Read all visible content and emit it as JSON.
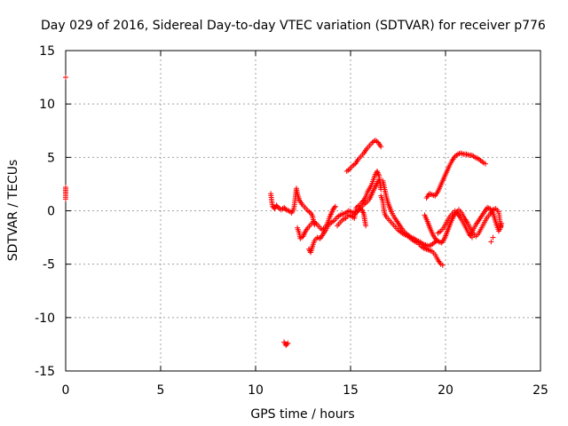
{
  "chart_data": {
    "type": "scatter",
    "title": "Day 029 of 2016, Sidereal Day-to-day VTEC variation (SDTVAR) for receiver p776",
    "xlabel": "GPS time / hours",
    "ylabel": "SDTVAR / TECUs",
    "xlim": [
      0,
      25
    ],
    "ylim": [
      -15,
      15
    ],
    "x_ticks": [
      "0",
      "5",
      "10",
      "15",
      "20",
      "25"
    ],
    "y_ticks": [
      "15",
      "10",
      "5",
      "0",
      "-5",
      "-10",
      "-15"
    ],
    "grid": true,
    "marker": "+",
    "series_color": "#ff0000",
    "series": [
      {
        "points": [
          [
            0.0,
            12.5
          ],
          [
            0.0,
            2.2
          ],
          [
            0.0,
            1.6
          ],
          [
            0.0,
            1.1
          ],
          [
            10.8,
            1.6
          ],
          [
            10.85,
            0.9
          ],
          [
            10.9,
            0.4
          ],
          [
            11.0,
            0.2
          ],
          [
            11.1,
            0.5
          ],
          [
            11.2,
            0.3
          ],
          [
            11.35,
            0.1
          ],
          [
            11.5,
            0.3
          ],
          [
            11.6,
            0.1
          ],
          [
            11.75,
            0.0
          ],
          [
            11.9,
            -0.2
          ],
          [
            12.0,
            0.1
          ],
          [
            12.05,
            0.6
          ],
          [
            12.1,
            1.3
          ],
          [
            12.15,
            2.1
          ],
          [
            12.2,
            1.6
          ],
          [
            12.3,
            1.0
          ],
          [
            12.45,
            0.6
          ],
          [
            12.6,
            0.3
          ],
          [
            12.75,
            0.0
          ],
          [
            12.9,
            -0.2
          ],
          [
            13.0,
            -0.5
          ],
          [
            13.05,
            -1.0
          ],
          [
            13.1,
            -1.3
          ],
          [
            12.2,
            -1.6
          ],
          [
            12.3,
            -2.1
          ],
          [
            12.35,
            -2.6
          ],
          [
            12.5,
            -2.4
          ],
          [
            12.6,
            -2.0
          ],
          [
            12.75,
            -1.6
          ],
          [
            12.9,
            -1.3
          ],
          [
            13.05,
            -1.0
          ],
          [
            13.2,
            -1.2
          ],
          [
            13.35,
            -1.5
          ],
          [
            13.5,
            -1.8
          ],
          [
            13.65,
            -1.6
          ],
          [
            13.8,
            -1.1
          ],
          [
            13.9,
            -0.6
          ],
          [
            14.0,
            -0.2
          ],
          [
            14.1,
            0.2
          ],
          [
            14.2,
            0.4
          ],
          [
            12.8,
            -3.6
          ],
          [
            12.9,
            -3.9
          ],
          [
            13.0,
            -3.3
          ],
          [
            13.1,
            -2.8
          ],
          [
            13.25,
            -2.5
          ],
          [
            13.4,
            -2.6
          ],
          [
            13.55,
            -2.2
          ],
          [
            13.7,
            -1.8
          ],
          [
            13.85,
            -1.3
          ],
          [
            14.0,
            -1.1
          ],
          [
            14.15,
            -0.9
          ],
          [
            14.3,
            -0.6
          ],
          [
            14.45,
            -0.4
          ],
          [
            14.6,
            -0.3
          ],
          [
            14.75,
            -0.2
          ],
          [
            14.9,
            0.0
          ],
          [
            15.05,
            -0.1
          ],
          [
            15.2,
            -0.3
          ],
          [
            15.35,
            -0.1
          ],
          [
            15.5,
            0.2
          ],
          [
            15.6,
            0.1
          ],
          [
            15.7,
            -0.3
          ],
          [
            15.75,
            -0.9
          ],
          [
            15.8,
            -1.4
          ],
          [
            14.3,
            -1.4
          ],
          [
            14.45,
            -1.1
          ],
          [
            14.6,
            -0.8
          ],
          [
            14.75,
            -0.7
          ],
          [
            14.9,
            -0.4
          ],
          [
            15.05,
            -0.5
          ],
          [
            15.2,
            -0.7
          ],
          [
            15.3,
            0.3
          ],
          [
            15.45,
            0.5
          ],
          [
            15.6,
            0.8
          ],
          [
            15.7,
            1.0
          ],
          [
            15.8,
            1.3
          ],
          [
            15.9,
            1.8
          ],
          [
            16.0,
            2.1
          ],
          [
            16.1,
            2.4
          ],
          [
            16.2,
            2.9
          ],
          [
            16.3,
            3.4
          ],
          [
            16.4,
            3.7
          ],
          [
            16.5,
            3.3
          ],
          [
            16.55,
            2.6
          ],
          [
            16.6,
            2.0
          ],
          [
            15.4,
            0.0
          ],
          [
            15.55,
            0.3
          ],
          [
            15.7,
            0.6
          ],
          [
            15.85,
            0.8
          ],
          [
            16.0,
            1.1
          ],
          [
            16.1,
            1.5
          ],
          [
            16.2,
            1.9
          ],
          [
            16.3,
            2.2
          ],
          [
            16.4,
            2.6
          ],
          [
            16.5,
            2.9
          ],
          [
            14.8,
            3.7
          ],
          [
            14.95,
            3.9
          ],
          [
            15.1,
            4.2
          ],
          [
            15.25,
            4.4
          ],
          [
            15.4,
            4.8
          ],
          [
            15.55,
            5.1
          ],
          [
            15.7,
            5.4
          ],
          [
            15.85,
            5.8
          ],
          [
            16.0,
            6.1
          ],
          [
            16.15,
            6.4
          ],
          [
            16.3,
            6.6
          ],
          [
            16.45,
            6.4
          ],
          [
            16.6,
            6.0
          ],
          [
            16.6,
            1.4
          ],
          [
            16.7,
            0.9
          ],
          [
            16.75,
            0.2
          ],
          [
            16.8,
            -0.3
          ],
          [
            16.9,
            -0.6
          ],
          [
            17.05,
            -0.9
          ],
          [
            17.2,
            -1.2
          ],
          [
            17.35,
            -1.5
          ],
          [
            17.5,
            -1.8
          ],
          [
            17.65,
            -2.0
          ],
          [
            17.8,
            -2.2
          ],
          [
            17.95,
            -2.3
          ],
          [
            18.1,
            -2.5
          ],
          [
            18.25,
            -2.7
          ],
          [
            18.4,
            -2.9
          ],
          [
            18.55,
            -3.0
          ],
          [
            18.7,
            -3.3
          ],
          [
            18.85,
            -3.5
          ],
          [
            19.0,
            -3.6
          ],
          [
            19.15,
            -3.7
          ],
          [
            19.3,
            -3.8
          ],
          [
            19.45,
            -4.1
          ],
          [
            19.6,
            -4.6
          ],
          [
            19.75,
            -5.0
          ],
          [
            19.85,
            -5.1
          ],
          [
            16.7,
            2.8
          ],
          [
            16.8,
            2.0
          ],
          [
            16.9,
            1.2
          ],
          [
            17.0,
            0.6
          ],
          [
            17.15,
            -0.1
          ],
          [
            17.3,
            -0.6
          ],
          [
            17.45,
            -1.0
          ],
          [
            17.6,
            -1.4
          ],
          [
            17.75,
            -1.8
          ],
          [
            17.9,
            -2.1
          ],
          [
            18.05,
            -2.3
          ],
          [
            18.2,
            -2.5
          ],
          [
            18.35,
            -2.6
          ],
          [
            18.5,
            -2.8
          ],
          [
            18.65,
            -2.9
          ],
          [
            18.8,
            -3.1
          ],
          [
            18.95,
            -3.2
          ],
          [
            19.1,
            -3.3
          ],
          [
            19.25,
            -3.2
          ],
          [
            19.4,
            -3.0
          ],
          [
            19.55,
            -2.8
          ],
          [
            19.0,
            1.2
          ],
          [
            19.15,
            1.6
          ],
          [
            19.3,
            1.5
          ],
          [
            19.45,
            1.4
          ],
          [
            19.6,
            1.8
          ],
          [
            19.75,
            2.4
          ],
          [
            19.9,
            3.0
          ],
          [
            20.05,
            3.6
          ],
          [
            20.2,
            4.2
          ],
          [
            20.35,
            4.7
          ],
          [
            20.5,
            5.1
          ],
          [
            20.65,
            5.3
          ],
          [
            20.8,
            5.4
          ],
          [
            20.95,
            5.3
          ],
          [
            21.1,
            5.3
          ],
          [
            21.25,
            5.2
          ],
          [
            21.4,
            5.2
          ],
          [
            21.55,
            5.0
          ],
          [
            21.7,
            4.9
          ],
          [
            21.85,
            4.7
          ],
          [
            22.0,
            4.5
          ],
          [
            22.1,
            4.4
          ],
          [
            18.9,
            -0.4
          ],
          [
            19.05,
            -1.0
          ],
          [
            19.2,
            -1.7
          ],
          [
            19.35,
            -2.3
          ],
          [
            19.5,
            -2.7
          ],
          [
            19.65,
            -2.9
          ],
          [
            19.8,
            -3.0
          ],
          [
            19.95,
            -2.6
          ],
          [
            20.1,
            -1.9
          ],
          [
            20.25,
            -1.2
          ],
          [
            20.4,
            -0.6
          ],
          [
            20.55,
            -0.2
          ],
          [
            20.7,
            0.1
          ],
          [
            20.85,
            -0.2
          ],
          [
            21.0,
            -0.7
          ],
          [
            21.15,
            -1.1
          ],
          [
            21.3,
            -1.6
          ],
          [
            21.45,
            -2.1
          ],
          [
            21.6,
            -2.4
          ],
          [
            21.75,
            -2.1
          ],
          [
            21.9,
            -1.6
          ],
          [
            22.05,
            -1.1
          ],
          [
            22.2,
            -0.6
          ],
          [
            22.35,
            -0.3
          ],
          [
            22.5,
            0.1
          ],
          [
            22.65,
            0.2
          ],
          [
            22.8,
            -0.1
          ],
          [
            22.85,
            -0.8
          ],
          [
            22.9,
            -1.5
          ],
          [
            19.6,
            -2.1
          ],
          [
            19.75,
            -1.9
          ],
          [
            19.9,
            -1.6
          ],
          [
            20.05,
            -1.1
          ],
          [
            20.2,
            -0.6
          ],
          [
            20.35,
            -0.3
          ],
          [
            20.5,
            0.0
          ],
          [
            20.65,
            -0.3
          ],
          [
            20.8,
            -0.7
          ],
          [
            20.95,
            -1.2
          ],
          [
            21.1,
            -1.7
          ],
          [
            21.25,
            -2.2
          ],
          [
            21.4,
            -2.5
          ],
          [
            21.3,
            -2.3
          ],
          [
            21.45,
            -1.8
          ],
          [
            21.6,
            -1.3
          ],
          [
            21.75,
            -0.9
          ],
          [
            21.9,
            -0.5
          ],
          [
            22.05,
            -0.1
          ],
          [
            22.2,
            0.3
          ],
          [
            22.35,
            0.2
          ],
          [
            22.5,
            -0.2
          ],
          [
            22.6,
            -0.8
          ],
          [
            22.7,
            -1.4
          ],
          [
            22.8,
            -1.9
          ],
          [
            22.9,
            -1.6
          ],
          [
            22.95,
            -1.2
          ],
          [
            22.5,
            -2.5
          ],
          [
            22.4,
            -2.9
          ],
          [
            11.5,
            -12.3
          ],
          [
            11.6,
            -12.6
          ],
          [
            11.7,
            -12.4
          ]
        ]
      }
    ]
  }
}
